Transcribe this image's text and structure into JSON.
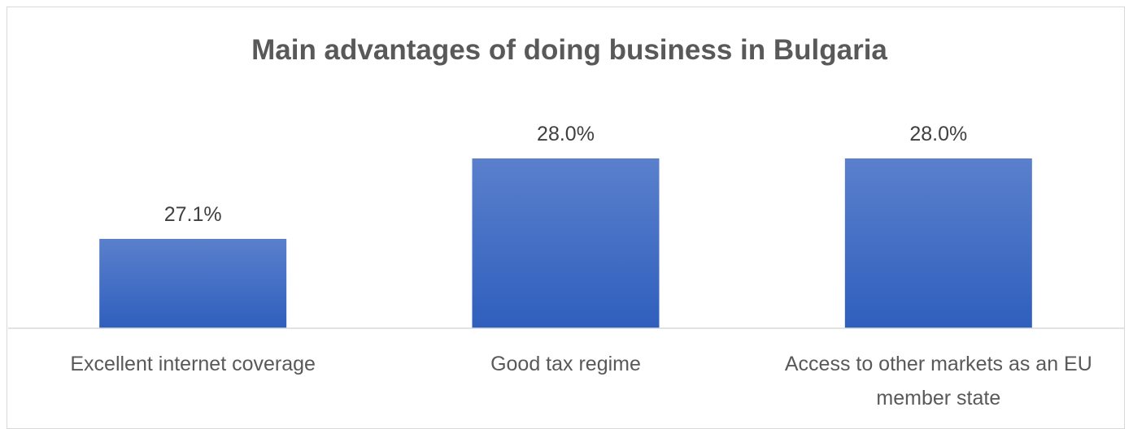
{
  "chart_data": {
    "type": "bar",
    "title": "Main advantages of doing business in Bulgaria",
    "categories": [
      "Excellent internet coverage",
      "Good tax regime",
      "Access to other markets as an EU member state"
    ],
    "category_lines": [
      [
        "Excellent internet coverage"
      ],
      [
        "Good tax regime"
      ],
      [
        "Access to other markets as an EU",
        "member state"
      ]
    ],
    "values": [
      27.1,
      28.0,
      28.0
    ],
    "data_labels": [
      "27.1%",
      "28.0%",
      "28.0%"
    ],
    "ylim": [
      26.1,
      28.5
    ],
    "grid": false,
    "legend": "none",
    "colors": {
      "bar_top": "#5a80cc",
      "bar_bottom": "#2f5fbd",
      "axis": "#d9d9d9",
      "title": "#595959",
      "labels": "#404040"
    }
  }
}
